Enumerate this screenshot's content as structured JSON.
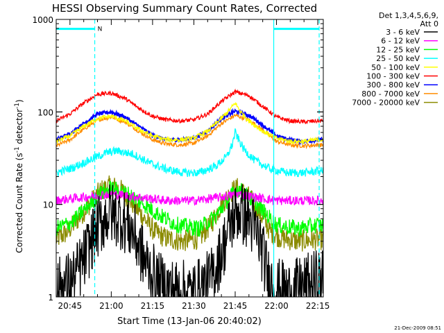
{
  "chart_data": {
    "type": "line",
    "title": "HESSI Observing Summary Count Rates, Corrected",
    "xlabel": "Start Time (13-Jan-06 20:40:02)",
    "ylabel_main": "Corrected Count Rate (s",
    "ylabel_sup1": "-1",
    "ylabel_mid": " detector",
    "ylabel_sup2": "-1",
    "ylabel_end": ")",
    "yscale": "log",
    "ylim": [
      1,
      1000
    ],
    "xlim_minutes": [
      0,
      97
    ],
    "x_unit": "minutes since 20:40:02",
    "x_ticks": [
      {
        "label": "20:45",
        "x": 5
      },
      {
        "label": "21:00",
        "x": 20
      },
      {
        "label": "21:15",
        "x": 35
      },
      {
        "label": "21:30",
        "x": 50
      },
      {
        "label": "21:45",
        "x": 65
      },
      {
        "label": "22:00",
        "x": 80
      },
      {
        "label": "22:15",
        "x": 95
      }
    ],
    "y_ticks": [
      {
        "label": "1",
        "y": 1
      },
      {
        "label": "10",
        "y": 10
      },
      {
        "label": "100",
        "y": 100
      },
      {
        "label": "1000",
        "y": 1000
      }
    ],
    "legend_header": [
      "Det 1,3,4,5,6,9,",
      "Att 0"
    ],
    "legend_position": "right",
    "timestamp": "21-Dec-2009 08:51",
    "flag_label": "N",
    "vlines_minutes": [
      -1,
      14,
      79,
      95.5
    ],
    "flag_bars": [
      [
        -1,
        14
      ],
      [
        79,
        95.5
      ]
    ],
    "flag_bar_y": 790,
    "series": [
      {
        "name": "3 - 6 keV",
        "color": "#000000",
        "x": [
          0,
          6,
          10,
          14,
          18,
          20,
          24,
          28,
          32,
          37,
          42,
          50,
          56,
          60,
          64,
          66,
          70,
          74,
          77,
          80,
          85,
          90,
          95
        ],
        "y": [
          1.2,
          1.5,
          2.5,
          5,
          7.5,
          8,
          7,
          5,
          2.5,
          1.4,
          1.2,
          1.1,
          1.5,
          3,
          7,
          8.5,
          7,
          4,
          1.6,
          1.2,
          1.1,
          1.3,
          1.5
        ]
      },
      {
        "name": "6 - 12 keV",
        "color": "#ff00ff",
        "x": [
          0,
          10,
          20,
          30,
          40,
          50,
          60,
          66,
          72,
          80,
          88,
          95
        ],
        "y": [
          11,
          12,
          13,
          12,
          11,
          11,
          12,
          13,
          12,
          11,
          11,
          11
        ]
      },
      {
        "name": "12 - 25 keV",
        "color": "#00ff00",
        "x": [
          0,
          6,
          12,
          16,
          20,
          26,
          32,
          38,
          44,
          52,
          58,
          62,
          66,
          70,
          76,
          80,
          88,
          95
        ],
        "y": [
          5.5,
          6.5,
          10,
          13,
          15,
          13,
          10,
          7.5,
          6,
          5.5,
          7.5,
          11,
          15,
          12,
          8,
          6,
          5.5,
          6
        ]
      },
      {
        "name": "25 - 50 keV",
        "color": "#00ffff",
        "x": [
          0,
          6,
          12,
          18,
          22,
          28,
          34,
          40,
          46,
          52,
          58,
          62,
          64,
          65,
          66,
          68,
          72,
          78,
          84,
          90,
          95
        ],
        "y": [
          22,
          25,
          30,
          36,
          38,
          35,
          28,
          24,
          22,
          22,
          26,
          33,
          45,
          60,
          52,
          40,
          30,
          24,
          22,
          22,
          23
        ]
      },
      {
        "name": "50 - 100 keV",
        "color": "#ffff00",
        "x": [
          0,
          5,
          10,
          15,
          20,
          25,
          30,
          35,
          40,
          45,
          50,
          55,
          60,
          63,
          65,
          67,
          70,
          75,
          80,
          85,
          90,
          95
        ],
        "y": [
          48,
          55,
          70,
          85,
          90,
          80,
          65,
          55,
          50,
          50,
          52,
          62,
          85,
          105,
          125,
          100,
          80,
          62,
          52,
          48,
          48,
          50
        ]
      },
      {
        "name": "100 - 300 keV",
        "color": "#ff0000",
        "x": [
          0,
          5,
          10,
          15,
          20,
          25,
          30,
          35,
          40,
          45,
          50,
          55,
          60,
          65,
          70,
          75,
          80,
          85,
          90,
          95
        ],
        "y": [
          80,
          95,
          125,
          155,
          160,
          140,
          110,
          90,
          82,
          80,
          82,
          95,
          130,
          165,
          150,
          115,
          88,
          80,
          78,
          80
        ]
      },
      {
        "name": "300 - 800 keV",
        "color": "#0000ff",
        "x": [
          0,
          5,
          10,
          15,
          20,
          25,
          30,
          35,
          40,
          45,
          50,
          55,
          60,
          65,
          70,
          75,
          80,
          85,
          90,
          95
        ],
        "y": [
          50,
          58,
          75,
          95,
          100,
          88,
          70,
          56,
          50,
          50,
          52,
          62,
          85,
          102,
          92,
          72,
          55,
          50,
          48,
          50
        ]
      },
      {
        "name": "800 - 7000 keV",
        "color": "#ff8c00",
        "x": [
          0,
          5,
          10,
          15,
          20,
          25,
          30,
          35,
          40,
          45,
          50,
          55,
          60,
          65,
          70,
          75,
          80,
          85,
          90,
          95
        ],
        "y": [
          43,
          50,
          65,
          82,
          88,
          78,
          62,
          50,
          45,
          44,
          46,
          55,
          75,
          92,
          82,
          64,
          48,
          44,
          43,
          44
        ]
      },
      {
        "name": "7000 - 20000 keV",
        "color": "#8b8b00",
        "x": [
          0,
          4,
          8,
          12,
          16,
          20,
          24,
          28,
          32,
          36,
          40,
          46,
          52,
          56,
          60,
          64,
          66,
          70,
          74,
          78,
          82,
          88,
          95
        ],
        "y": [
          4.2,
          5,
          7,
          10,
          14,
          16,
          14,
          10,
          7,
          5,
          4.3,
          4,
          4.3,
          6,
          10,
          14,
          15,
          12,
          8,
          5,
          4.3,
          4,
          4.2
        ]
      }
    ]
  }
}
